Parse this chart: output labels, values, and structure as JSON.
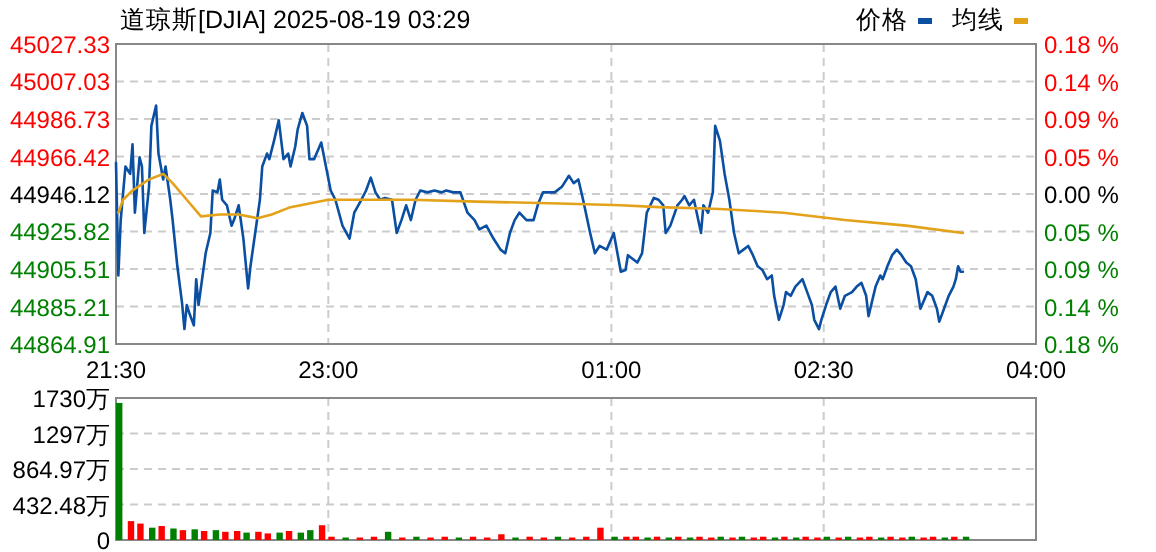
{
  "chart_data": [
    {
      "type": "line",
      "title": "道琼斯[DJIA] 2025-08-19 03:29",
      "xlim": [
        "2025-08-18T21:30",
        "2025-08-19T04:00"
      ],
      "xticks": [
        {
          "value": "2025-08-18T21:30",
          "label": "21:30"
        },
        {
          "value": "2025-08-18T23:00",
          "label": "23:00"
        },
        {
          "value": "2025-08-19T01:00",
          "label": "01:00"
        },
        {
          "value": "2025-08-19T02:30",
          "label": "02:30"
        },
        {
          "value": "2025-08-19T04:00",
          "label": "04:00"
        }
      ],
      "ylim": [
        44864.91,
        45027.33
      ],
      "yticks": [
        44864.91,
        44885.21,
        44905.51,
        44925.82,
        44946.12,
        44966.42,
        44986.73,
        45007.03,
        45027.33
      ],
      "y2lim": [
        -0.18,
        0.18
      ],
      "y2ticks": [
        {
          "value": -0.18,
          "label": "0.18 %"
        },
        {
          "value": -0.135,
          "label": "0.14 %"
        },
        {
          "value": -0.09,
          "label": "0.09 %"
        },
        {
          "value": -0.045,
          "label": "0.05 %"
        },
        {
          "value": 0,
          "label": "0.00 %"
        },
        {
          "value": 0.045,
          "label": "0.05 %"
        },
        {
          "value": 0.09,
          "label": "0.09 %"
        },
        {
          "value": 0.135,
          "label": "0.14 %"
        },
        {
          "value": 0.18,
          "label": "0.18 %"
        }
      ],
      "grid": true,
      "legend": "top right",
      "series": [
        {
          "name": "价格",
          "color": "#0b4fa3",
          "x": [
            "2025-08-18T21:30",
            "2025-08-18T21:31",
            "2025-08-18T21:32",
            "2025-08-18T21:34",
            "2025-08-18T21:36",
            "2025-08-18T21:37",
            "2025-08-18T21:38",
            "2025-08-18T21:40",
            "2025-08-18T21:41",
            "2025-08-18T21:42",
            "2025-08-18T21:44",
            "2025-08-18T21:45",
            "2025-08-18T21:47",
            "2025-08-18T21:48",
            "2025-08-18T21:50",
            "2025-08-18T21:51",
            "2025-08-18T21:53",
            "2025-08-18T21:54",
            "2025-08-18T21:56",
            "2025-08-18T21:58",
            "2025-08-18T21:59",
            "2025-08-18T22:00",
            "2025-08-18T22:01",
            "2025-08-18T22:03",
            "2025-08-18T22:04",
            "2025-08-18T22:05",
            "2025-08-18T22:08",
            "2025-08-18T22:10",
            "2025-08-18T22:11",
            "2025-08-18T22:13",
            "2025-08-18T22:14",
            "2025-08-18T22:15",
            "2025-08-18T22:17",
            "2025-08-18T22:19",
            "2025-08-18T22:20",
            "2025-08-18T22:22",
            "2025-08-18T22:24",
            "2025-08-18T22:26",
            "2025-08-18T22:27",
            "2025-08-18T22:29",
            "2025-08-18T22:31",
            "2025-08-18T22:32",
            "2025-08-18T22:34",
            "2025-08-18T22:35",
            "2025-08-18T22:37",
            "2025-08-18T22:39",
            "2025-08-18T22:41",
            "2025-08-18T22:43",
            "2025-08-18T22:44",
            "2025-08-18T22:46",
            "2025-08-18T22:47",
            "2025-08-18T22:49",
            "2025-08-18T22:51",
            "2025-08-18T22:52",
            "2025-08-18T22:54",
            "2025-08-18T22:55",
            "2025-08-18T22:57",
            "2025-08-18T22:59",
            "2025-08-18T23:01",
            "2025-08-18T23:03",
            "2025-08-18T23:06",
            "2025-08-18T23:09",
            "2025-08-18T23:11",
            "2025-08-18T23:14",
            "2025-08-18T23:16",
            "2025-08-18T23:18",
            "2025-08-18T23:20",
            "2025-08-18T23:22",
            "2025-08-18T23:24",
            "2025-08-18T23:27",
            "2025-08-18T23:29",
            "2025-08-18T23:31",
            "2025-08-18T23:33",
            "2025-08-18T23:35",
            "2025-08-18T23:37",
            "2025-08-18T23:39",
            "2025-08-18T23:42",
            "2025-08-18T23:45",
            "2025-08-18T23:48",
            "2025-08-18T23:50",
            "2025-08-18T23:53",
            "2025-08-18T23:56",
            "2025-08-18T23:59",
            "2025-08-19T00:02",
            "2025-08-19T00:04",
            "2025-08-19T00:07",
            "2025-08-19T00:10",
            "2025-08-19T00:13",
            "2025-08-19T00:15",
            "2025-08-19T00:17",
            "2025-08-19T00:19",
            "2025-08-19T00:21",
            "2025-08-19T00:24",
            "2025-08-19T00:27",
            "2025-08-19T00:29",
            "2025-08-19T00:31",
            "2025-08-19T00:34",
            "2025-08-19T00:36",
            "2025-08-19T00:39",
            "2025-08-19T00:42",
            "2025-08-19T00:44",
            "2025-08-19T00:46",
            "2025-08-19T00:48",
            "2025-08-19T00:51",
            "2025-08-19T00:53",
            "2025-08-19T00:55",
            "2025-08-19T00:58",
            "2025-08-19T01:01",
            "2025-08-19T01:02",
            "2025-08-19T01:04",
            "2025-08-19T01:06",
            "2025-08-19T01:07",
            "2025-08-19T01:11",
            "2025-08-19T01:13",
            "2025-08-19T01:15",
            "2025-08-19T01:18",
            "2025-08-19T01:20",
            "2025-08-19T01:22",
            "2025-08-19T01:23",
            "2025-08-19T01:25",
            "2025-08-19T01:28",
            "2025-08-19T01:30",
            "2025-08-19T01:31",
            "2025-08-19T01:33",
            "2025-08-19T01:35",
            "2025-08-19T01:38",
            "2025-08-19T01:39",
            "2025-08-19T01:41",
            "2025-08-19T01:43",
            "2025-08-19T01:44",
            "2025-08-19T01:46",
            "2025-08-19T01:48",
            "2025-08-19T01:50",
            "2025-08-19T01:52",
            "2025-08-19T01:54",
            "2025-08-19T01:56",
            "2025-08-19T01:58",
            "2025-08-19T02:00",
            "2025-08-19T02:02",
            "2025-08-19T02:04",
            "2025-08-19T02:06",
            "2025-08-19T02:08",
            "2025-08-19T02:09",
            "2025-08-19T02:11",
            "2025-08-19T02:13",
            "2025-08-19T02:14",
            "2025-08-19T02:16",
            "2025-08-19T02:18",
            "2025-08-19T02:21",
            "2025-08-19T02:23",
            "2025-08-19T02:25",
            "2025-08-19T02:26",
            "2025-08-19T02:28",
            "2025-08-19T02:29",
            "2025-08-19T02:31",
            "2025-08-19T02:33",
            "2025-08-19T02:35",
            "2025-08-19T02:37",
            "2025-08-19T02:39",
            "2025-08-19T02:42",
            "2025-08-19T02:44",
            "2025-08-19T02:46",
            "2025-08-19T02:48",
            "2025-08-19T02:49",
            "2025-08-19T02:52",
            "2025-08-19T02:54",
            "2025-08-19T02:55",
            "2025-08-19T02:57",
            "2025-08-19T02:59",
            "2025-08-19T03:01",
            "2025-08-19T03:03",
            "2025-08-19T03:05",
            "2025-08-19T03:07",
            "2025-08-19T03:09",
            "2025-08-19T03:11",
            "2025-08-19T03:14",
            "2025-08-19T03:16",
            "2025-08-19T03:18",
            "2025-08-19T03:19",
            "2025-08-19T03:21",
            "2025-08-19T03:23",
            "2025-08-19T03:25",
            "2025-08-19T03:26",
            "2025-08-19T03:27",
            "2025-08-19T03:28",
            "2025-08-19T03:29"
          ],
          "values": [
            44963,
            44902,
            44932,
            44961,
            44957,
            44973,
            44936,
            44966,
            44961,
            44925,
            44950,
            44983,
            44994,
            44968,
            44954,
            44961,
            44943,
            44932,
            44907,
            44887,
            44873,
            44886,
            44882,
            44875,
            44900,
            44886,
            44914,
            44925,
            44948,
            44947,
            44954,
            44943,
            44940,
            44929,
            44932,
            44940,
            44922,
            44895,
            44907,
            44925,
            44943,
            44961,
            44968,
            44965,
            44975,
            44986,
            44965,
            44968,
            44961,
            44972,
            44981,
            44990,
            44983,
            44965,
            44965,
            44968,
            44974,
            44961,
            44948,
            44943,
            44929,
            44922,
            44936,
            44943,
            44948,
            44955,
            44947,
            44943,
            44944,
            44943,
            44925,
            44932,
            44940,
            44932,
            44943,
            44948,
            44947,
            44948,
            44947,
            44948,
            44947,
            44947,
            44936,
            44932,
            44927,
            44929,
            44922,
            44916,
            44914,
            44925,
            44932,
            44936,
            44932,
            44932,
            44941,
            44947,
            44947,
            44947,
            44950,
            44956,
            44952,
            44954,
            44943,
            44925,
            44914,
            44918,
            44916,
            44925,
            44918,
            44904,
            44905,
            44913,
            44909,
            44914,
            44936,
            44944,
            44943,
            44940,
            44925,
            44929,
            44940,
            44943,
            44945,
            44940,
            44943,
            44925,
            44940,
            44936,
            44947,
            44983,
            44975,
            44957,
            44943,
            44925,
            44914,
            44916,
            44918,
            44913,
            44907,
            44905,
            44900,
            44902,
            44891,
            44878,
            44886,
            44893,
            44891,
            44896,
            44900,
            44893,
            44886,
            44878,
            44873,
            44878,
            44886,
            44893,
            44896,
            44884,
            44891,
            44893,
            44896,
            44898,
            44891,
            44880,
            44896,
            44902,
            44900,
            44907,
            44913,
            44916,
            44913,
            44909,
            44907,
            44900,
            44884,
            44893,
            44891,
            44884,
            44877,
            44884,
            44891,
            44896,
            44900,
            44907,
            44904,
            44904
          ]
        },
        {
          "name": "均线",
          "color": "#e3a21a",
          "x": [
            "2025-08-18T21:31",
            "2025-08-18T21:33",
            "2025-08-18T21:37",
            "2025-08-18T21:44",
            "2025-08-18T21:50",
            "2025-08-18T21:54",
            "2025-08-18T22:00",
            "2025-08-18T22:06",
            "2025-08-18T22:14",
            "2025-08-18T22:22",
            "2025-08-18T22:30",
            "2025-08-18T22:36",
            "2025-08-18T22:44",
            "2025-08-18T22:52",
            "2025-08-18T23:00",
            "2025-08-18T23:35",
            "2025-08-19T00:03",
            "2025-08-19T00:38",
            "2025-08-19T01:04",
            "2025-08-19T01:20",
            "2025-08-19T01:46",
            "2025-08-19T02:13",
            "2025-08-19T02:39",
            "2025-08-19T03:05",
            "2025-08-19T03:29"
          ],
          "values": [
            44936,
            44943,
            44948,
            44954,
            44957,
            44952,
            44943,
            44934,
            44935,
            44935,
            44933,
            44935,
            44939,
            44941,
            44943,
            44943,
            44942,
            44941,
            44940,
            44939,
            44938,
            44936,
            44932,
            44929,
            44925
          ]
        }
      ]
    },
    {
      "type": "bar",
      "xlim": [
        "2025-08-18T21:30",
        "2025-08-19T04:00"
      ],
      "xticks": [
        {
          "value": "2025-08-18T21:30",
          "label": null
        },
        {
          "value": "2025-08-18T23:00",
          "label": null
        },
        {
          "value": "2025-08-19T01:00",
          "label": null
        },
        {
          "value": "2025-08-19T02:30",
          "label": null
        },
        {
          "value": "2025-08-19T04:00",
          "label": null
        }
      ],
      "ylim": [
        0,
        1729.94
      ],
      "yticks": [
        0,
        {
          "value": 432.48,
          "label": "432.48万"
        },
        {
          "value": 864.97,
          "label": "864.97万"
        },
        {
          "value": 1297.45,
          "label": "1297万"
        },
        {
          "value": 1729.94,
          "label": "1730万"
        }
      ],
      "grid": true,
      "tick_labels": "y",
      "x": [
        "2025-08-18T21:30",
        "2025-08-18T21:35",
        "2025-08-18T21:39",
        "2025-08-18T21:44",
        "2025-08-18T21:48",
        "2025-08-18T21:53",
        "2025-08-18T21:57",
        "2025-08-18T22:02",
        "2025-08-18T22:06",
        "2025-08-18T22:11",
        "2025-08-18T22:15",
        "2025-08-18T22:20",
        "2025-08-18T22:24",
        "2025-08-18T22:29",
        "2025-08-18T22:33",
        "2025-08-18T22:38",
        "2025-08-18T22:42",
        "2025-08-18T22:47",
        "2025-08-18T22:51",
        "2025-08-18T22:56",
        "2025-08-18T23:00",
        "2025-08-18T23:06",
        "2025-08-18T23:12",
        "2025-08-18T23:18",
        "2025-08-18T23:24",
        "2025-08-18T23:30",
        "2025-08-18T23:36",
        "2025-08-18T23:42",
        "2025-08-18T23:48",
        "2025-08-18T23:54",
        "2025-08-19T00:00",
        "2025-08-19T00:06",
        "2025-08-19T00:12",
        "2025-08-19T00:18",
        "2025-08-19T00:24",
        "2025-08-19T00:30",
        "2025-08-19T00:36",
        "2025-08-19T00:42",
        "2025-08-19T00:48",
        "2025-08-19T00:54",
        "2025-08-19T01:00",
        "2025-08-19T01:05",
        "2025-08-19T01:09",
        "2025-08-19T01:14",
        "2025-08-19T01:18",
        "2025-08-19T01:23",
        "2025-08-19T01:27",
        "2025-08-19T01:32",
        "2025-08-19T01:36",
        "2025-08-19T01:41",
        "2025-08-19T01:45",
        "2025-08-19T01:50",
        "2025-08-19T01:54",
        "2025-08-19T01:59",
        "2025-08-19T02:03",
        "2025-08-19T02:08",
        "2025-08-19T02:12",
        "2025-08-19T02:17",
        "2025-08-19T02:21",
        "2025-08-19T02:26",
        "2025-08-19T02:30",
        "2025-08-19T02:35",
        "2025-08-19T02:39",
        "2025-08-19T02:44",
        "2025-08-19T02:48",
        "2025-08-19T02:53",
        "2025-08-19T02:57",
        "2025-08-19T03:02",
        "2025-08-19T03:06",
        "2025-08-19T03:11",
        "2025-08-19T03:15",
        "2025-08-19T03:20",
        "2025-08-19T03:24",
        "2025-08-19T03:29"
      ],
      "values": [
        1670,
        230,
        200,
        150,
        170,
        140,
        120,
        130,
        110,
        120,
        100,
        110,
        90,
        100,
        80,
        90,
        110,
        90,
        120,
        180,
        40,
        30,
        30,
        40,
        100,
        30,
        40,
        30,
        40,
        30,
        40,
        30,
        70,
        30,
        40,
        30,
        40,
        30,
        40,
        150,
        40,
        40,
        40,
        30,
        40,
        30,
        40,
        30,
        40,
        30,
        40,
        30,
        40,
        30,
        40,
        30,
        40,
        30,
        40,
        30,
        40,
        30,
        40,
        30,
        40,
        30,
        40,
        30,
        40,
        30,
        40,
        30,
        40,
        40
      ],
      "colors": [
        "#008000",
        "#ff0000",
        "#ff0000",
        "#008000",
        "#ff0000",
        "#008000",
        "#ff0000",
        "#008000",
        "#ff0000",
        "#008000",
        "#ff0000",
        "#ff0000",
        "#008000",
        "#ff0000",
        "#ff0000",
        "#008000",
        "#ff0000",
        "#008000",
        "#008000",
        "#ff0000",
        "#ff0000",
        "#008000",
        "#ff0000",
        "#ff0000",
        "#008000",
        "#ff0000",
        "#008000",
        "#ff0000",
        "#ff0000",
        "#008000",
        "#ff0000",
        "#ff0000",
        "#ff0000",
        "#008000",
        "#ff0000",
        "#ff0000",
        "#008000",
        "#ff0000",
        "#ff0000",
        "#ff0000",
        "#008000",
        "#ff0000",
        "#ff0000",
        "#008000",
        "#ff0000",
        "#008000",
        "#ff0000",
        "#008000",
        "#ff0000",
        "#ff0000",
        "#008000",
        "#ff0000",
        "#008000",
        "#ff0000",
        "#ff0000",
        "#008000",
        "#ff0000",
        "#008000",
        "#ff0000",
        "#ff0000",
        "#008000",
        "#ff0000",
        "#008000",
        "#ff0000",
        "#ff0000",
        "#008000",
        "#ff0000",
        "#ff0000",
        "#008000",
        "#ff0000",
        "#ff0000",
        "#008000",
        "#ff0000",
        "#008000"
      ]
    }
  ]
}
